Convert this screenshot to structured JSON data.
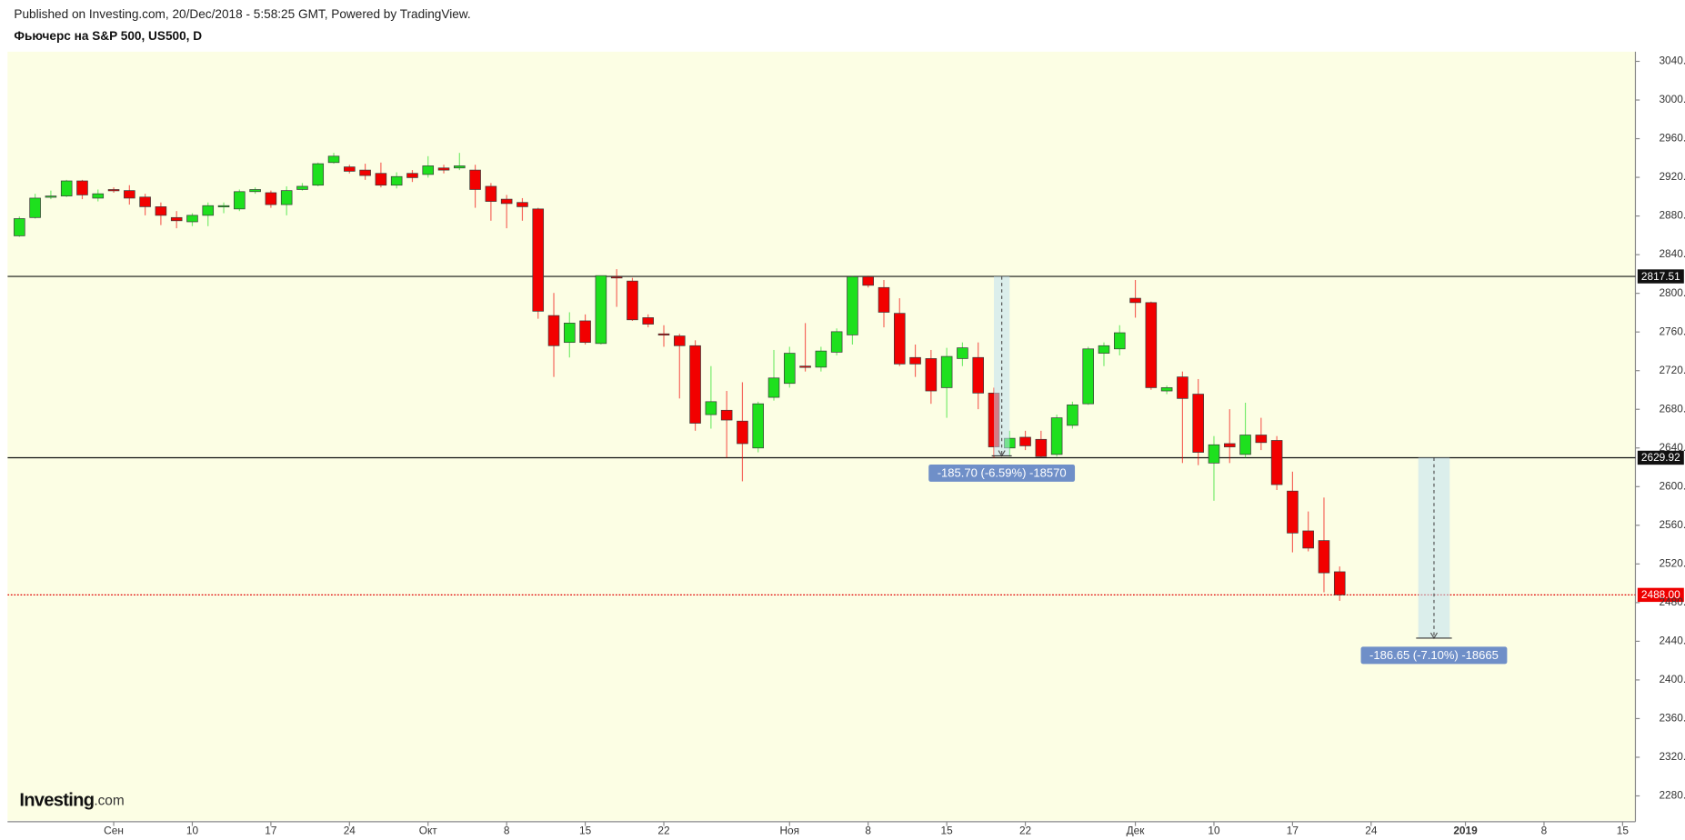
{
  "header": {
    "published": "Published on Investing.com, 20/Dec/2018 - 5:58:25 GMT, Powered by TradingView.",
    "instrument": "Фьючерс на S&P 500, US500, D"
  },
  "logo": {
    "name": "Investing",
    "suffix": ".com"
  },
  "chart_data": {
    "type": "candlestick",
    "up_color": "#1ee01e",
    "down_color": "#f20000",
    "categories": [
      "2018-08-24",
      "2018-08-27",
      "2018-08-28",
      "2018-08-29",
      "2018-08-30",
      "2018-08-31",
      "2018-09-03",
      "2018-09-04",
      "2018-09-05",
      "2018-09-06",
      "2018-09-07",
      "2018-09-10",
      "2018-09-11",
      "2018-09-12",
      "2018-09-13",
      "2018-09-14",
      "2018-09-17",
      "2018-09-18",
      "2018-09-19",
      "2018-09-20",
      "2018-09-21",
      "2018-09-24",
      "2018-09-25",
      "2018-09-26",
      "2018-09-27",
      "2018-09-28",
      "2018-10-01",
      "2018-10-02",
      "2018-10-03",
      "2018-10-04",
      "2018-10-05",
      "2018-10-08",
      "2018-10-09",
      "2018-10-10",
      "2018-10-11",
      "2018-10-12",
      "2018-10-15",
      "2018-10-16",
      "2018-10-17",
      "2018-10-18",
      "2018-10-19",
      "2018-10-22",
      "2018-10-23",
      "2018-10-24",
      "2018-10-25",
      "2018-10-26",
      "2018-10-29",
      "2018-10-30",
      "2018-10-31",
      "2018-11-01",
      "2018-11-02",
      "2018-11-05",
      "2018-11-06",
      "2018-11-07",
      "2018-11-08",
      "2018-11-09",
      "2018-11-12",
      "2018-11-13",
      "2018-11-14",
      "2018-11-15",
      "2018-11-16",
      "2018-11-19",
      "2018-11-20",
      "2018-11-21",
      "2018-11-22",
      "2018-11-23",
      "2018-11-26",
      "2018-11-27",
      "2018-11-28",
      "2018-11-29",
      "2018-11-30",
      "2018-12-03",
      "2018-12-04",
      "2018-12-05",
      "2018-12-06",
      "2018-12-07",
      "2018-12-10",
      "2018-12-11",
      "2018-12-12",
      "2018-12-13",
      "2018-12-14",
      "2018-12-17",
      "2018-12-18",
      "2018-12-19",
      "2018-12-20"
    ],
    "open": [
      2859.5,
      2878.4,
      2899.6,
      2900.7,
      2916.3,
      2898.5,
      2907.4,
      2906.3,
      2899.6,
      2889.6,
      2878.4,
      2874,
      2880.7,
      2889.6,
      2887.3,
      2905.2,
      2904.1,
      2891.8,
      2907.4,
      2911.9,
      2935.3,
      2930.8,
      2927.5,
      2924.1,
      2911.9,
      2924.1,
      2923,
      2929.7,
      2929.7,
      2927.5,
      2910.7,
      2897.4,
      2894,
      2887.3,
      2777,
      2749.2,
      2771.5,
      2748.1,
      2817.2,
      2812.7,
      2774.8,
      2758.1,
      2755.9,
      2745.8,
      2674.5,
      2679,
      2667.8,
      2640,
      2692.4,
      2706.8,
      2724.7,
      2723.6,
      2739.1,
      2757,
      2817.2,
      2806,
      2779.3,
      2733.6,
      2732.5,
      2702.4,
      2732.5,
      2733.6,
      2696.8,
      2640,
      2651.1,
      2648.9,
      2633.3,
      2663.4,
      2685.7,
      2738,
      2742.5,
      2794.9,
      2790.4,
      2699,
      2713.5,
      2695.7,
      2624.4,
      2644.5,
      2633.3,
      2653.4,
      2647.8,
      2595.4,
      2554.2,
      2544.2,
      2511.9
    ],
    "high": [
      2879.5,
      2903,
      2906.3,
      2917.4,
      2917.4,
      2907.4,
      2909.6,
      2911.9,
      2903,
      2894,
      2885.1,
      2882.9,
      2894,
      2894,
      2907.4,
      2909.6,
      2906.3,
      2910.7,
      2914.1,
      2935.3,
      2945.3,
      2933,
      2934.1,
      2935.3,
      2925.2,
      2927.5,
      2941.9,
      2933,
      2945.3,
      2933,
      2914.1,
      2901.8,
      2898.5,
      2888.5,
      2800.4,
      2780.4,
      2778.2,
      2818.3,
      2825,
      2816,
      2778.2,
      2767,
      2758.1,
      2751.4,
      2724.7,
      2699,
      2708,
      2687.9,
      2741.4,
      2744.7,
      2769.2,
      2744.7,
      2763.7,
      2818.3,
      2818.3,
      2813.8,
      2794.9,
      2747,
      2741.4,
      2743.6,
      2749.2,
      2749.2,
      2702.4,
      2657.8,
      2657.8,
      2657.8,
      2674.5,
      2687.9,
      2744.7,
      2749.2,
      2767,
      2813.8,
      2791.5,
      2704.6,
      2719.1,
      2711.3,
      2652.3,
      2680.1,
      2686.8,
      2671.2,
      2652.3,
      2615.5,
      2574.3,
      2588.7,
      2517.4
    ],
    "low": [
      2858.4,
      2877.3,
      2897.4,
      2899.6,
      2897.4,
      2895.1,
      2904.1,
      2891.8,
      2880.7,
      2870.6,
      2867.3,
      2869.5,
      2869.5,
      2882.9,
      2885.1,
      2903,
      2888.5,
      2880.7,
      2906.3,
      2910.7,
      2934.1,
      2924.1,
      2917.4,
      2909.6,
      2908.5,
      2915.2,
      2919.7,
      2924.1,
      2927.5,
      2888.5,
      2875.1,
      2867.3,
      2875.1,
      2773.7,
      2713.5,
      2733.6,
      2747,
      2747,
      2786,
      2771.5,
      2764.8,
      2744.7,
      2691.2,
      2657.8,
      2660,
      2630,
      2605.5,
      2635.5,
      2689,
      2702.4,
      2719.1,
      2719.1,
      2735.8,
      2747,
      2806,
      2764.8,
      2724.7,
      2713.5,
      2685.7,
      2671.2,
      2724.7,
      2680.1,
      2630,
      2631.1,
      2637.8,
      2630,
      2631.1,
      2660,
      2684.6,
      2724.7,
      2735.8,
      2774.8,
      2700.2,
      2695.7,
      2624.4,
      2622.2,
      2585.4,
      2624.4,
      2630,
      2637.8,
      2596.5,
      2532,
      2533,
      2490.7,
      2481.8
    ],
    "close": [
      2877.3,
      2898.5,
      2900.7,
      2916.3,
      2901.8,
      2903,
      2906.3,
      2898.5,
      2889.6,
      2880.7,
      2875.1,
      2880.7,
      2890.7,
      2890.7,
      2905.2,
      2907.4,
      2891.8,
      2906.3,
      2910.7,
      2934.1,
      2941.9,
      2926.3,
      2921.9,
      2911.9,
      2920.8,
      2919.7,
      2931.9,
      2927.5,
      2931.9,
      2907.4,
      2895.1,
      2892.9,
      2889.6,
      2781.5,
      2745.8,
      2769.2,
      2749.2,
      2818.3,
      2816,
      2772.6,
      2768.1,
      2757,
      2745.8,
      2665.6,
      2687.9,
      2668.9,
      2644.5,
      2685.7,
      2712.4,
      2738,
      2723.6,
      2740.3,
      2760.3,
      2817.2,
      2808.3,
      2780.4,
      2726.9,
      2726.9,
      2699,
      2734.7,
      2743.6,
      2696.8,
      2641.1,
      2650,
      2642.2,
      2631.1,
      2671.2,
      2684.6,
      2742.5,
      2745.8,
      2759.2,
      2790.4,
      2702.4,
      2702.4,
      2691.2,
      2635.5,
      2643.3,
      2641.1,
      2653.4,
      2645.6,
      2602.1,
      2552,
      2536.4,
      2510.8,
      2488
    ],
    "xlim": [
      "2018-08-23",
      "2019-01-16"
    ],
    "xticks": [
      {
        "value": "2018-09-03",
        "label": "Сен"
      },
      {
        "value": "2018-09-10",
        "label": "10"
      },
      {
        "value": "2018-09-17",
        "label": "17"
      },
      {
        "value": "2018-09-24",
        "label": "24"
      },
      {
        "value": "2018-10-01",
        "label": "Окт"
      },
      {
        "value": "2018-10-08",
        "label": "8"
      },
      {
        "value": "2018-10-15",
        "label": "15"
      },
      {
        "value": "2018-10-22",
        "label": "22"
      },
      {
        "value": "2018-11-01",
        "label": "Ноя"
      },
      {
        "value": "2018-11-08",
        "label": "8"
      },
      {
        "value": "2018-11-15",
        "label": "15"
      },
      {
        "value": "2018-11-22",
        "label": "22"
      },
      {
        "value": "2018-12-03",
        "label": "Дек"
      },
      {
        "value": "2018-12-10",
        "label": "10"
      },
      {
        "value": "2018-12-17",
        "label": "17"
      },
      {
        "value": "2018-12-24",
        "label": "24"
      },
      {
        "value": "2019-01-01",
        "label": "2019"
      },
      {
        "value": "2019-01-08",
        "label": "8"
      },
      {
        "value": "2019-01-15",
        "label": "15"
      }
    ],
    "ylim": [
      2255,
      3050
    ],
    "yticks": [
      {
        "value": 3040,
        "label": "3040.00"
      },
      {
        "value": 3000,
        "label": "3000.00"
      },
      {
        "value": 2960,
        "label": "2960.00"
      },
      {
        "value": 2920,
        "label": "2920.00"
      },
      {
        "value": 2880,
        "label": "2880.00"
      },
      {
        "value": 2840,
        "label": "2840.00"
      },
      {
        "value": 2800,
        "label": "2800.00"
      },
      {
        "value": 2760,
        "label": "2760.00"
      },
      {
        "value": 2720,
        "label": "2720.00"
      },
      {
        "value": 2680,
        "label": "2680.00"
      },
      {
        "value": 2640,
        "label": "2640.00"
      },
      {
        "value": 2600,
        "label": "2600.00"
      },
      {
        "value": 2560,
        "label": "2560.00"
      },
      {
        "value": 2520,
        "label": "2520.00"
      },
      {
        "value": 2480,
        "label": "2480.00"
      },
      {
        "value": 2440,
        "label": "2440.00"
      },
      {
        "value": 2400,
        "label": "2400.00"
      },
      {
        "value": 2360,
        "label": "2360.00"
      },
      {
        "value": 2320,
        "label": "2320.00"
      },
      {
        "value": 2280,
        "label": "2280.00"
      }
    ],
    "levels": [
      2817.51,
      2629.92
    ],
    "last_price": {
      "value": 2488,
      "label": "2488.00"
    },
    "measures": [
      {
        "start": "2018-11-20",
        "end": "2018-11-21",
        "from": 2817.51,
        "to": 2631.81,
        "label": "-185.70 (-6.59%) -18570"
      },
      {
        "start": "2018-12-27",
        "end": "2018-12-31",
        "from": 2629.92,
        "to": 2443.27,
        "label": "-186.65 (-7.10%) -18665"
      }
    ]
  }
}
